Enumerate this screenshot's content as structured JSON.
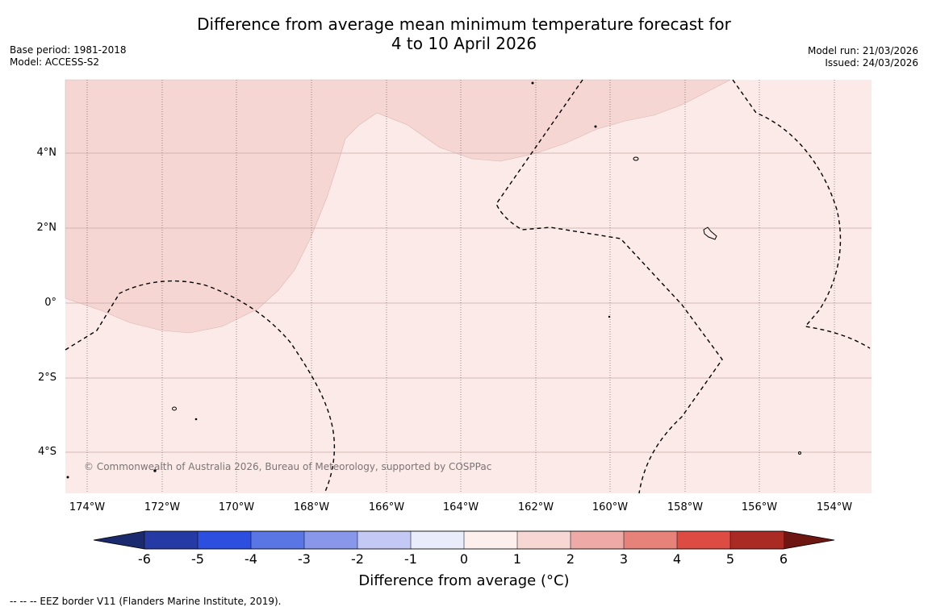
{
  "title": {
    "line1": "Difference from average mean minimum temperature forecast for",
    "line2": "4 to 10 April 2026"
  },
  "meta_left": {
    "base_period": "Base period: 1981-2018",
    "model": "Model: ACCESS-S2"
  },
  "meta_right": {
    "model_run": "Model run: 21/03/2026",
    "issued": "Issued: 24/03/2026"
  },
  "map": {
    "lat_labels": [
      "4°N",
      "2°N",
      "0°",
      "2°S",
      "4°S"
    ],
    "lon_labels": [
      "174°W",
      "172°W",
      "170°W",
      "168°W",
      "166°W",
      "164°W",
      "162°W",
      "160°W",
      "158°W",
      "156°W",
      "154°W"
    ],
    "credit": "© Commonwealth of Australia 2026, Bureau of Meteorology, supported by COSPPac",
    "fill_colors": {
      "band_0_1": "#fbeae8",
      "band_1_2": "#f6d6d3"
    }
  },
  "colorbar": {
    "ticks": [
      "-6",
      "-5",
      "-4",
      "-3",
      "-2",
      "-1",
      "0",
      "1",
      "2",
      "3",
      "4",
      "5",
      "6"
    ],
    "colors": [
      "#263aa6",
      "#2c4fe0",
      "#5a76e4",
      "#8897ea",
      "#c3c9f4",
      "#e9ecfa",
      "#fdefec",
      "#f7d7d3",
      "#eeaaa6",
      "#e7827a",
      "#dc4c42",
      "#aa2a24"
    ],
    "under_color": "#1b2a6e",
    "over_color": "#6e1712",
    "label": "Difference from average (°C)"
  },
  "legend_note": "--  --  -- EEZ border V11 (Flanders Marine Institute, 2019)."
}
